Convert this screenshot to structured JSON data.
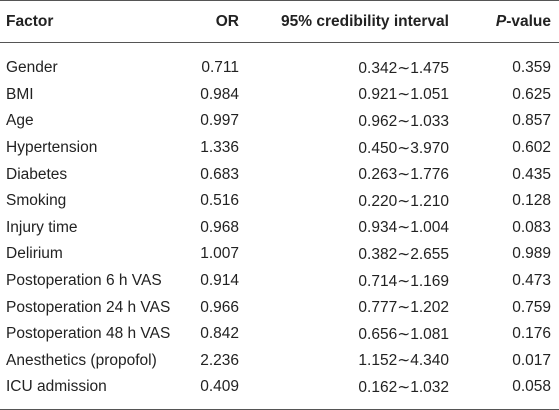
{
  "table": {
    "headers": {
      "factor": "Factor",
      "or": "OR",
      "ci": "95% credibility interval",
      "p_italic": "P",
      "p_suffix": "-value"
    },
    "rows": [
      {
        "factor": "Gender",
        "or": "0.711",
        "ci": "0.342∼1.475",
        "p": "0.359"
      },
      {
        "factor": "BMI",
        "or": "0.984",
        "ci": "0.921∼1.051",
        "p": "0.625"
      },
      {
        "factor": "Age",
        "or": "0.997",
        "ci": "0.962∼1.033",
        "p": "0.857"
      },
      {
        "factor": "Hypertension",
        "or": "1.336",
        "ci": "0.450∼3.970",
        "p": "0.602"
      },
      {
        "factor": "Diabetes",
        "or": "0.683",
        "ci": "0.263∼1.776",
        "p": "0.435"
      },
      {
        "factor": "Smoking",
        "or": "0.516",
        "ci": "0.220∼1.210",
        "p": "0.128"
      },
      {
        "factor": "Injury time",
        "or": "0.968",
        "ci": "0.934∼1.004",
        "p": "0.083"
      },
      {
        "factor": "Delirium",
        "or": "1.007",
        "ci": "0.382∼2.655",
        "p": "0.989"
      },
      {
        "factor": "Postoperation 6 h VAS",
        "or": "0.914",
        "ci": "0.714∼1.169",
        "p": "0.473"
      },
      {
        "factor": "Postoperation 24 h VAS",
        "or": "0.966",
        "ci": "0.777∼1.202",
        "p": "0.759"
      },
      {
        "factor": "Postoperation 48 h VAS",
        "or": "0.842",
        "ci": "0.656∼1.081",
        "p": "0.176"
      },
      {
        "factor": "Anesthetics (propofol)",
        "or": "2.236",
        "ci": "1.152∼4.340",
        "p": "0.017"
      },
      {
        "factor": "ICU admission",
        "or": "0.409",
        "ci": "0.162∼1.032",
        "p": "0.058"
      }
    ]
  }
}
